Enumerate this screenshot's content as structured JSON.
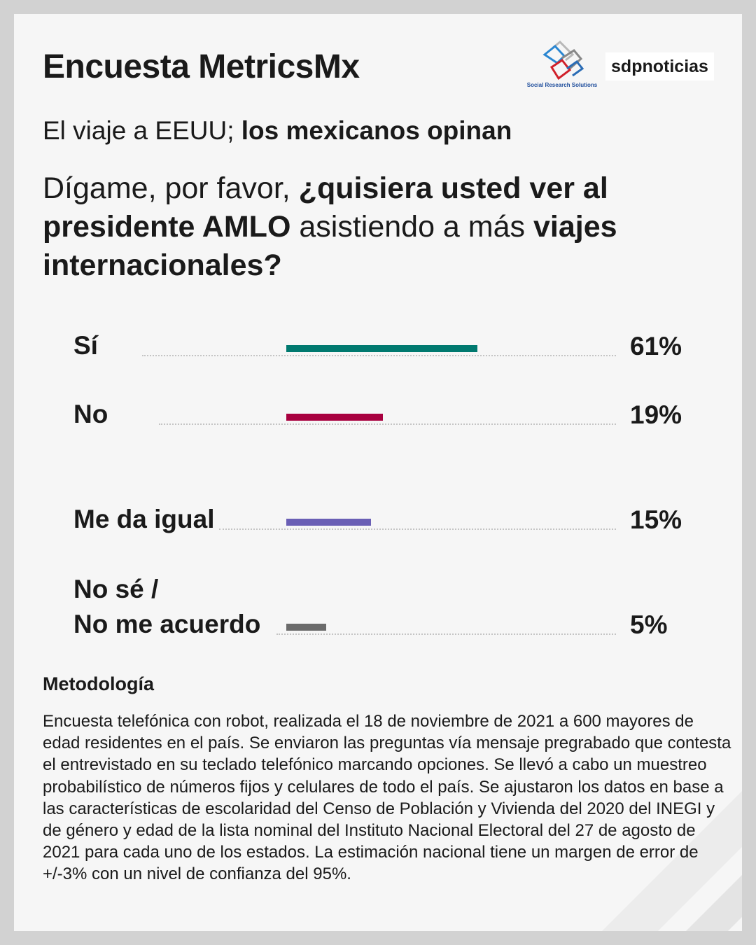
{
  "header": {
    "title": "Encuesta MetricsMx",
    "subtitle_regular": "El viaje a EEUU; ",
    "subtitle_bold": "los mexicanos opinan"
  },
  "logos": {
    "srs": "Social Research Solutions",
    "sdp": "sdpnoticias"
  },
  "question": {
    "p1": "Dígame, por favor, ",
    "p2": "¿quisiera usted ver al presidente AMLO",
    "p3": " asistiendo a más ",
    "p4": "viajes internacionales?"
  },
  "chart_data": {
    "type": "bar",
    "orientation": "horizontal",
    "categories": [
      "Sí",
      "No",
      "Me da igual",
      "No sé / No me acuerdo"
    ],
    "values": [
      61,
      19,
      15,
      5
    ],
    "data_labels": [
      "61%",
      "19%",
      "15%",
      "5%"
    ],
    "colors": [
      "#00796f",
      "#a8003f",
      "#6a5fb5",
      "#6b6b6b"
    ],
    "grid": false
  },
  "labels": {
    "c3a": "No sé /",
    "c3b": "No me acuerdo"
  },
  "methodology": {
    "title": "Metodología",
    "text": "Encuesta telefónica con robot, realizada el 18 de noviembre de 2021 a 600 mayores de edad residentes en el país. Se enviaron las preguntas vía mensaje pregrabado que contesta el entrevistado en su teclado telefónico marcando opciones. Se llevó a cabo un muestreo probabilístico de números fijos y celulares de todo el país. Se ajustaron los datos en base a las características de escolaridad del Censo de Población y Vivienda del 2020 del INEGI y de género y edad de la lista nominal del Instituto Nacional Electoral del 27 de agosto de 2021 para cada uno de los estados. La estimación nacional tiene un margen de error de +/-3% con un nivel de confianza del 95%."
  }
}
